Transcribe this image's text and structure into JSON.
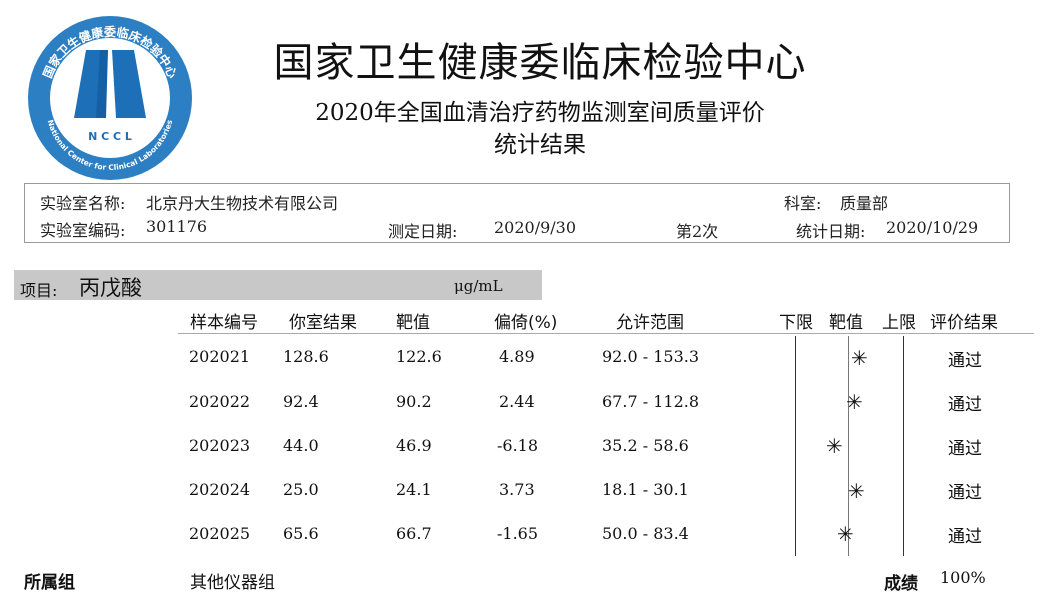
{
  "logo": {
    "top_text": "国家卫生健康委临床检验中心",
    "abbrev": "N C C L",
    "english": "National Center for Clinical Laboratories"
  },
  "header": {
    "title": "国家卫生健康委临床检验中心",
    "subtitle": "2020年全国血清治疗药物监测室间质量评价",
    "subtitle2": "统计结果"
  },
  "info": {
    "lab_name_label": "实验室名称:",
    "lab_name": "北京丹大生物技术有限公司",
    "dept_label": "科室:",
    "dept": "质量部",
    "lab_code_label": "实验室编码:",
    "lab_code": "301176",
    "test_date_label": "测定日期:",
    "test_date": "2020/9/30",
    "round": "第2次",
    "stat_date_label": "统计日期:",
    "stat_date": "2020/10/29"
  },
  "item": {
    "label": "项目:",
    "name": "丙戊酸",
    "unit": "μg/mL"
  },
  "table": {
    "headers": {
      "sample": "样本编号",
      "result": "你室结果",
      "target": "靶值",
      "bias": "偏倚(%)",
      "range": "允许范围",
      "lower": "下限",
      "target_col": "靶值",
      "upper": "上限",
      "evaluation": "评价结果"
    },
    "rows": [
      {
        "sample": "202021",
        "result": "128.6",
        "target": "122.6",
        "bias": "4.89",
        "range": "92.0 - 153.3",
        "eval": "通过",
        "marker": "✳"
      },
      {
        "sample": "202022",
        "result": "92.4",
        "target": "90.2",
        "bias": "2.44",
        "range": "67.7 - 112.8",
        "eval": "通过",
        "marker": "✳"
      },
      {
        "sample": "202023",
        "result": "44.0",
        "target": "46.9",
        "bias": "-6.18",
        "range": "35.2 - 58.6",
        "eval": "通过",
        "marker": "✳"
      },
      {
        "sample": "202024",
        "result": "25.0",
        "target": "24.1",
        "bias": "3.73",
        "range": "18.1 - 30.1",
        "eval": "通过",
        "marker": "✳"
      },
      {
        "sample": "202025",
        "result": "65.6",
        "target": "66.7",
        "bias": "-1.65",
        "range": "50.0 - 83.4",
        "eval": "通过",
        "marker": "✳"
      }
    ]
  },
  "footer": {
    "group_label": "所属组",
    "group": "其他仪器组",
    "score_label": "成绩",
    "score": "100%"
  }
}
